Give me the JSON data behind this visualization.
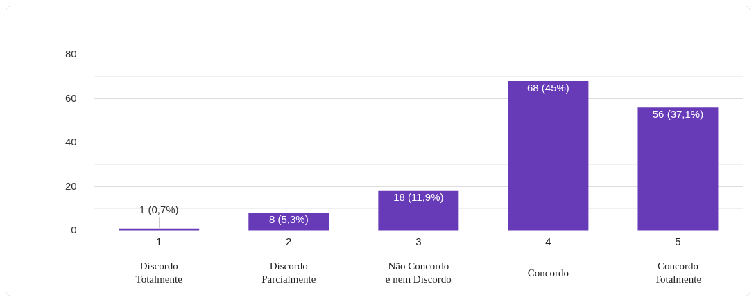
{
  "chart_data": {
    "type": "bar",
    "categories": [
      "1",
      "2",
      "3",
      "4",
      "5"
    ],
    "values": [
      1,
      8,
      18,
      68,
      56
    ],
    "color": "#673ab7",
    "value_labels": [
      "1 (0,7%)",
      "8 (5,3%)",
      "18 (11,9%)",
      "68 (45%)",
      "56 (37,1%)"
    ],
    "ylim": [
      0,
      80
    ],
    "yticks": [
      0,
      {
        "value": 10,
        "label": null
      },
      20,
      {
        "value": 30,
        "label": null
      },
      40,
      {
        "value": 50,
        "label": null
      },
      60,
      {
        "value": 70,
        "label": null
      },
      80
    ],
    "grid": "y",
    "annotations": [
      "Discordo Totalmente",
      "Discordo Parcialmente",
      "Não Concordo e nem Discordo",
      "Concordo",
      "Concordo Totalmente"
    ]
  }
}
